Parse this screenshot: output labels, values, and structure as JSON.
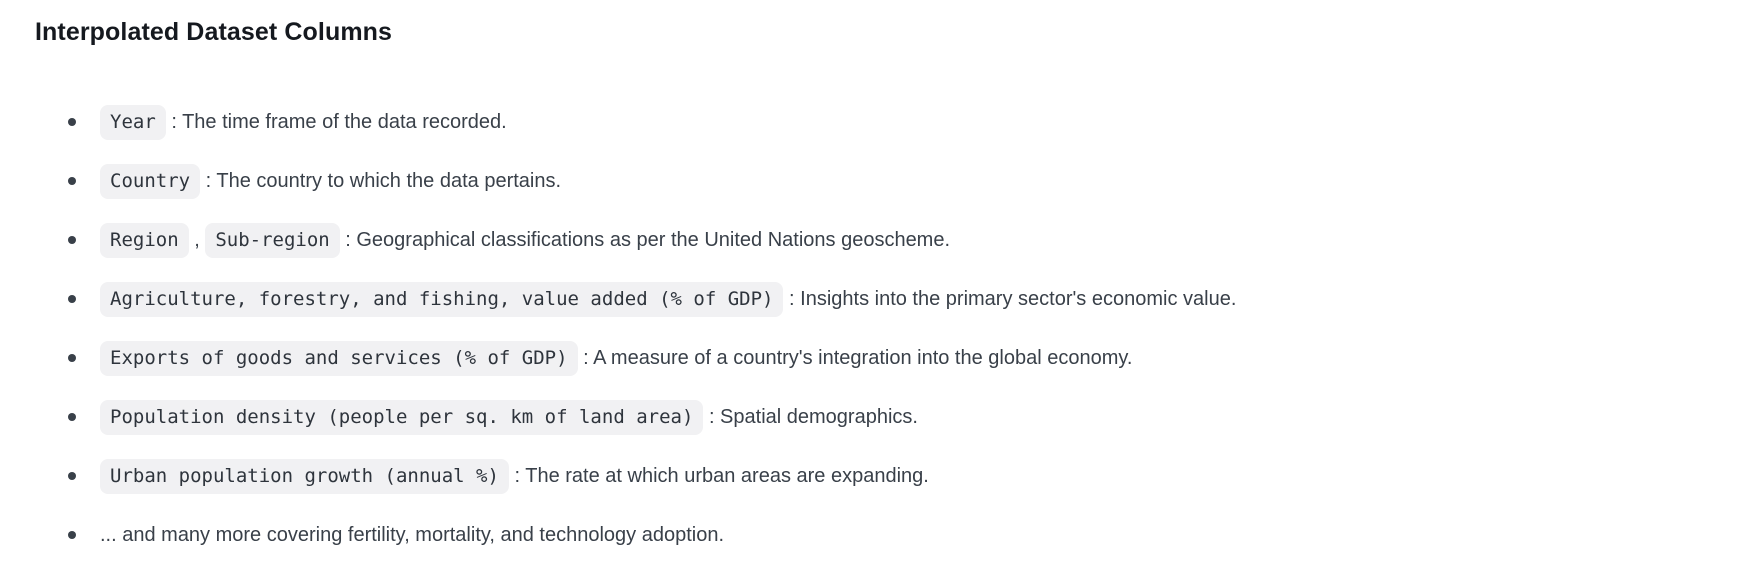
{
  "heading": {
    "text": "Interpolated Dataset Columns"
  },
  "list": {
    "items": [
      {
        "segments": [
          {
            "code": "Year"
          },
          {
            "text": " : The time frame of the data recorded."
          }
        ]
      },
      {
        "segments": [
          {
            "code": "Country"
          },
          {
            "text": " : The country to which the data pertains."
          }
        ]
      },
      {
        "segments": [
          {
            "code": "Region"
          },
          {
            "text": " , "
          },
          {
            "code": "Sub-region"
          },
          {
            "text": " : Geographical classifications as per the United Nations geoscheme."
          }
        ]
      },
      {
        "segments": [
          {
            "code": "Agriculture, forestry, and fishing, value added (% of GDP)"
          },
          {
            "text": " : Insights into the primary sector's economic value."
          }
        ]
      },
      {
        "segments": [
          {
            "code": "Exports of goods and services (% of GDP)"
          },
          {
            "text": " : A measure of a country's integration into the global economy."
          }
        ]
      },
      {
        "segments": [
          {
            "code": "Population density (people per sq. km of land area)"
          },
          {
            "text": " : Spatial demographics."
          }
        ]
      },
      {
        "segments": [
          {
            "code": "Urban population growth (annual %)"
          },
          {
            "text": " : The rate at which urban areas are expanding."
          }
        ]
      },
      {
        "segments": [
          {
            "text": "... and many more covering fertility, mortality, and technology adoption."
          }
        ]
      }
    ]
  },
  "colors": {
    "page_background": "#ffffff",
    "heading_text": "#15191f",
    "body_text": "#394049",
    "inline_code_text": "#2e343c",
    "inline_code_background": "#f1f1f3",
    "bullet_marker": "#394049"
  }
}
